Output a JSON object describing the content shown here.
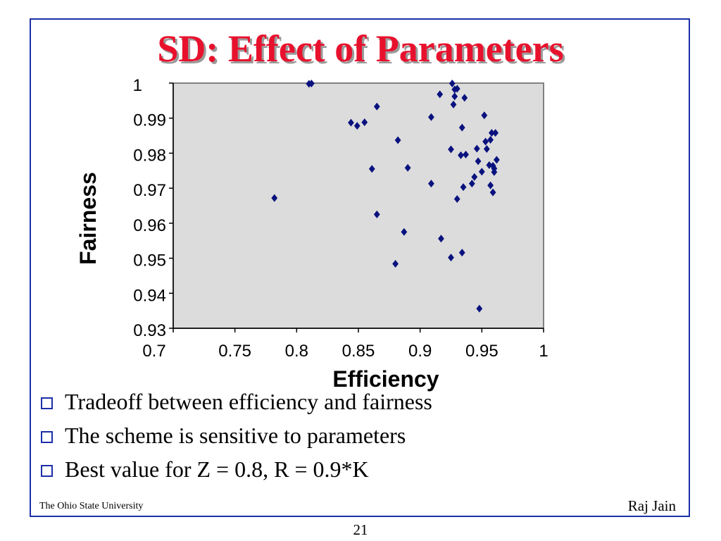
{
  "slide": {
    "title": "SD: Effect of Parameters",
    "bullets": [
      "Tradeoff between efficiency and fairness",
      "The scheme is sensitive to parameters",
      "Best value for Z = 0.8, R = 0.9*K"
    ],
    "footer_left": "The Ohio State University",
    "footer_right": "Raj Jain",
    "page_number": "21"
  },
  "chart_data": {
    "type": "scatter",
    "xlabel": "Efficiency",
    "ylabel": "Fairness",
    "xlim": [
      0.7,
      1
    ],
    "ylim": [
      0.93,
      1
    ],
    "x_ticks": [
      "0.7",
      "0.75",
      "0.8",
      "0.85",
      "0.9",
      "0.95",
      "1"
    ],
    "y_ticks": [
      "0.93",
      "0.94",
      "0.95",
      "0.96",
      "0.97",
      "0.98",
      "0.99",
      "1"
    ],
    "plot_background": "#dcdcdc",
    "marker_color": "#0a127e",
    "marker": "diamond",
    "grid": false,
    "points": [
      [
        0.81,
        0.9998
      ],
      [
        0.812,
        0.9999
      ],
      [
        0.926,
        0.9999
      ],
      [
        0.93,
        0.9984
      ],
      [
        0.928,
        0.9982
      ],
      [
        0.916,
        0.9968
      ],
      [
        0.928,
        0.9962
      ],
      [
        0.936,
        0.9958
      ],
      [
        0.865,
        0.9933
      ],
      [
        0.927,
        0.9939
      ],
      [
        0.909,
        0.9903
      ],
      [
        0.952,
        0.9908
      ],
      [
        0.844,
        0.9887
      ],
      [
        0.855,
        0.9888
      ],
      [
        0.849,
        0.9878
      ],
      [
        0.934,
        0.9873
      ],
      [
        0.958,
        0.9858
      ],
      [
        0.961,
        0.9858
      ],
      [
        0.882,
        0.9837
      ],
      [
        0.957,
        0.9838
      ],
      [
        0.953,
        0.9833
      ],
      [
        0.925,
        0.9811
      ],
      [
        0.946,
        0.9813
      ],
      [
        0.954,
        0.9812
      ],
      [
        0.937,
        0.9796
      ],
      [
        0.933,
        0.9794
      ],
      [
        0.962,
        0.9781
      ],
      [
        0.947,
        0.9777
      ],
      [
        0.861,
        0.9755
      ],
      [
        0.89,
        0.9758
      ],
      [
        0.95,
        0.9747
      ],
      [
        0.956,
        0.9766
      ],
      [
        0.959,
        0.9764
      ],
      [
        0.96,
        0.9756
      ],
      [
        0.96,
        0.9746
      ],
      [
        0.944,
        0.9732
      ],
      [
        0.909,
        0.9713
      ],
      [
        0.942,
        0.9713
      ],
      [
        0.935,
        0.9703
      ],
      [
        0.957,
        0.9708
      ],
      [
        0.959,
        0.9688
      ],
      [
        0.782,
        0.9672
      ],
      [
        0.93,
        0.9669
      ],
      [
        0.865,
        0.9625
      ],
      [
        0.887,
        0.9575
      ],
      [
        0.917,
        0.9556
      ],
      [
        0.934,
        0.9516
      ],
      [
        0.925,
        0.9502
      ],
      [
        0.88,
        0.9484
      ],
      [
        0.948,
        0.9356
      ]
    ]
  }
}
